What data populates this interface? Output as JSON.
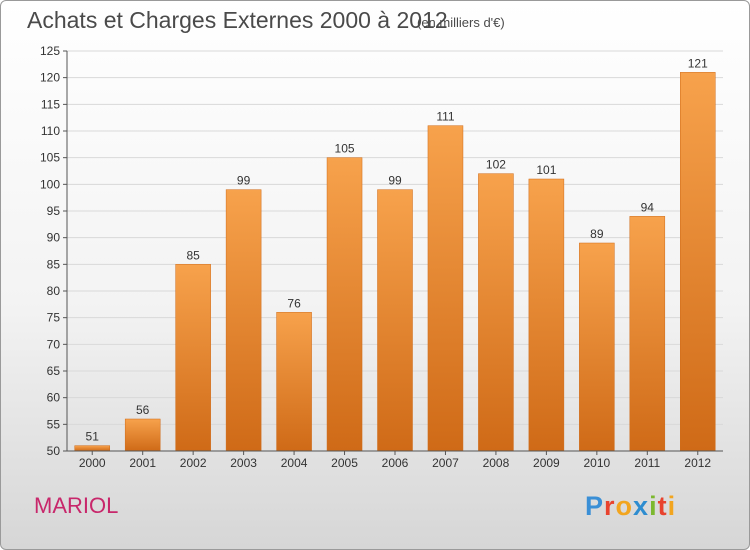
{
  "header": {
    "title": "Achats et Charges Externes 2000 à 2012",
    "subtitle": "(en milliers d'€)"
  },
  "footer": {
    "commune": "MARIOL",
    "logo": "Proxiti"
  },
  "colors": {
    "bar_light": "#f7a24c",
    "bar_dark": "#cf6a17",
    "grid": "#d9d9d9",
    "commune": "#c8276b"
  },
  "chart_data": {
    "type": "bar",
    "title": "Achats et Charges Externes 2000 à 2012",
    "subtitle": "(en milliers d'€)",
    "xlabel": "",
    "ylabel": "",
    "categories": [
      "2000",
      "2001",
      "2002",
      "2003",
      "2004",
      "2005",
      "2006",
      "2007",
      "2008",
      "2009",
      "2010",
      "2011",
      "2012"
    ],
    "values": [
      51,
      56,
      85,
      99,
      76,
      105,
      99,
      111,
      102,
      101,
      89,
      94,
      121
    ],
    "ylim": [
      50,
      125
    ],
    "yticks": [
      50,
      55,
      60,
      65,
      70,
      75,
      80,
      85,
      90,
      95,
      100,
      105,
      110,
      115,
      120,
      125
    ],
    "grid": true,
    "data_labels": true
  }
}
